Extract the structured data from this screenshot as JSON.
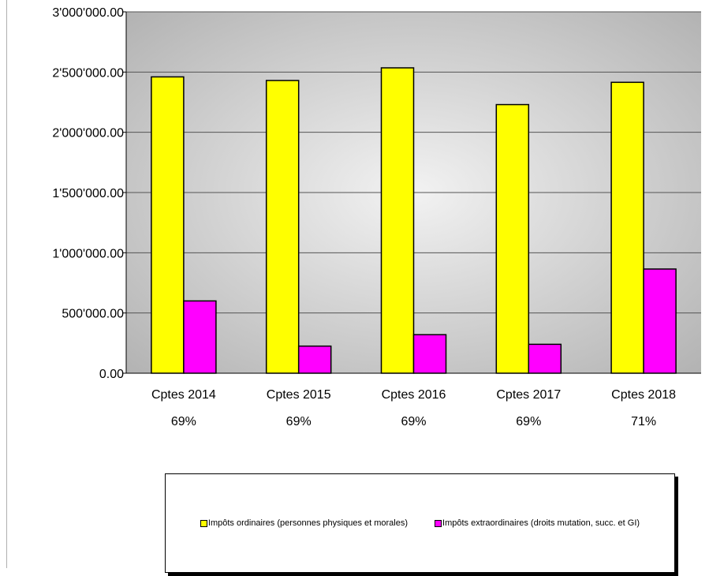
{
  "chart_data": {
    "type": "bar",
    "categories": [
      "Cptes 2014",
      "Cptes 2015",
      "Cptes 2016",
      "Cptes 2017",
      "Cptes 2018"
    ],
    "category_sublabels": [
      "69%",
      "69%",
      "69%",
      "69%",
      "71%"
    ],
    "series": [
      {
        "name": "Impôts ordinaires (personnes physiques et morales)",
        "color": "#ffff00",
        "values": [
          2460000,
          2430000,
          2535000,
          2230000,
          2415000
        ]
      },
      {
        "name": "Impôts extraordinaires (droits mutation, succ. et GI)",
        "color": "#ff00ff",
        "values": [
          600000,
          225000,
          320000,
          240000,
          865000
        ]
      }
    ],
    "ylim": [
      0,
      3000000
    ],
    "yticks": [
      0,
      500000,
      1000000,
      1500000,
      2000000,
      2500000,
      3000000
    ],
    "ytick_labels": [
      "0.00",
      "500'000.00",
      "1'000'000.00",
      "1'500'000.00",
      "2'000'000.00",
      "2'500'000.00",
      "3'000'000.00"
    ],
    "title": "",
    "xlabel": "",
    "ylabel": "",
    "grid": true,
    "legend_position": "bottom"
  }
}
